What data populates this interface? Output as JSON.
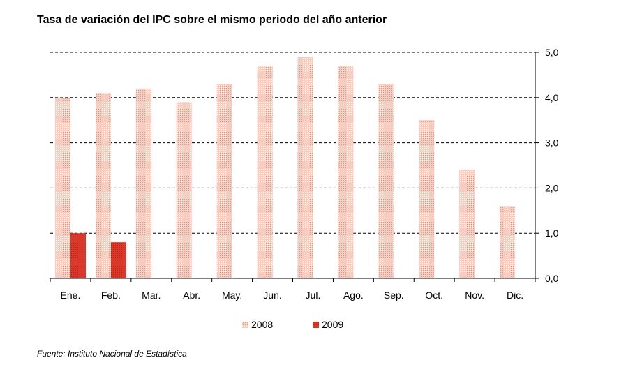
{
  "chart_data": {
    "type": "bar",
    "title": "Tasa de variación del IPC sobre el mismo periodo del año anterior",
    "xlabel": "",
    "ylabel": "",
    "categories": [
      "Ene.",
      "Feb.",
      "Mar.",
      "Abr.",
      "May.",
      "Jun.",
      "Jul.",
      "Ago.",
      "Sep.",
      "Oct.",
      "Nov.",
      "Dic."
    ],
    "series": [
      {
        "name": "2008",
        "values": [
          4.0,
          4.1,
          4.2,
          3.9,
          4.3,
          4.7,
          4.9,
          4.7,
          4.3,
          3.5,
          2.4,
          1.6
        ],
        "color": "#f2b9a6"
      },
      {
        "name": "2009",
        "values": [
          1.0,
          0.8,
          null,
          null,
          null,
          null,
          null,
          null,
          null,
          null,
          null,
          null
        ],
        "color": "#d9382a"
      }
    ],
    "ylim": [
      0,
      5
    ],
    "yticks": [
      "0,0",
      "1,0",
      "2,0",
      "3,0",
      "4,0",
      "5,0"
    ],
    "grid": true,
    "legend_position": "bottom-center"
  },
  "source": "Fuente: Instituto Nacional de Estadística"
}
